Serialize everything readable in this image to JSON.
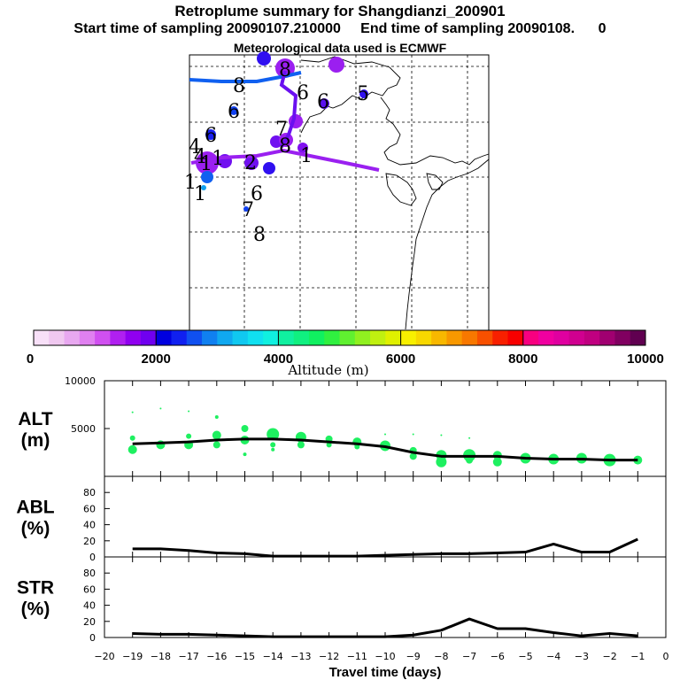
{
  "header": {
    "title": "Retroplume summary for Shangdianzi_200901",
    "line2": "Start time of sampling 20090107.210000     End time of sampling 20090108.      0",
    "line3": "Meteorological data used is ECMWF"
  },
  "colorbar": {
    "label": "Altitude (m)",
    "ticks": [
      "0",
      "2000",
      "4000",
      "6000",
      "8000",
      "10000"
    ],
    "colors": [
      "#f8e0f8",
      "#f0c8f0",
      "#e8a8f0",
      "#e080f0",
      "#d050f0",
      "#b020f0",
      "#9000f0",
      "#7000f0",
      "#0000e0",
      "#1020f0",
      "#1050f0",
      "#1080f0",
      "#10a8f0",
      "#10c8f0",
      "#10e0f0",
      "#10f0e0",
      "#10f0a0",
      "#10f080",
      "#10f060",
      "#30f040",
      "#60f030",
      "#90f020",
      "#c0f010",
      "#e0f000",
      "#f8f000",
      "#f8d800",
      "#f8b800",
      "#f89800",
      "#f87800",
      "#f85000",
      "#f82000",
      "#f80000",
      "#f80080",
      "#f000a0",
      "#e000a0",
      "#d00090",
      "#c00080",
      "#a00070",
      "#800060",
      "#600050"
    ]
  },
  "map": {
    "labels": [
      "8",
      "8",
      "6",
      "6",
      "5",
      "6",
      "6",
      "8",
      "7",
      "4",
      "1",
      "2",
      "4",
      "1",
      "1",
      "1",
      "1",
      "6",
      "7",
      "8"
    ]
  },
  "chart_data": [
    {
      "type": "line",
      "panel": "ALT",
      "ylabel": "ALT\n(m)",
      "ylabel_lines": [
        "ALT",
        "(m)"
      ],
      "ylim": [
        0,
        10000
      ],
      "yticks": [
        "10000",
        "5000"
      ],
      "x": [
        -19,
        -18,
        -17,
        -16,
        -15,
        -14,
        -13,
        -12,
        -11,
        -10,
        -9,
        -8,
        -7,
        -6,
        -5,
        -4,
        -3,
        -2,
        -1
      ],
      "series": [
        {
          "name": "mean altitude",
          "values": [
            3400,
            3500,
            3600,
            3800,
            3900,
            3900,
            3800,
            3600,
            3400,
            3100,
            2500,
            2100,
            2100,
            2100,
            1900,
            1800,
            1800,
            1700,
            1700
          ]
        }
      ],
      "scatter": [
        {
          "x": -19,
          "y": 6700,
          "s": 1
        },
        {
          "x": -19,
          "y": 4000,
          "s": 3
        },
        {
          "x": -19,
          "y": 2800,
          "s": 5
        },
        {
          "x": -18,
          "y": 7100,
          "s": 1
        },
        {
          "x": -18,
          "y": 3300,
          "s": 5
        },
        {
          "x": -17,
          "y": 6800,
          "s": 1
        },
        {
          "x": -17,
          "y": 4200,
          "s": 3
        },
        {
          "x": -17,
          "y": 3300,
          "s": 5
        },
        {
          "x": -16,
          "y": 6200,
          "s": 2
        },
        {
          "x": -16,
          "y": 4300,
          "s": 5
        },
        {
          "x": -16,
          "y": 3300,
          "s": 4
        },
        {
          "x": -15,
          "y": 5000,
          "s": 4
        },
        {
          "x": -15,
          "y": 3800,
          "s": 5
        },
        {
          "x": -15,
          "y": 2300,
          "s": 2
        },
        {
          "x": -14,
          "y": 4400,
          "s": 7
        },
        {
          "x": -14,
          "y": 3300,
          "s": 3
        },
        {
          "x": -14,
          "y": 2800,
          "s": 2
        },
        {
          "x": -13,
          "y": 4100,
          "s": 6
        },
        {
          "x": -13,
          "y": 3300,
          "s": 4
        },
        {
          "x": -12,
          "y": 3900,
          "s": 4
        },
        {
          "x": -12,
          "y": 3300,
          "s": 3
        },
        {
          "x": -11,
          "y": 3600,
          "s": 5
        },
        {
          "x": -11,
          "y": 3100,
          "s": 3
        },
        {
          "x": -10,
          "y": 4400,
          "s": 1
        },
        {
          "x": -10,
          "y": 3200,
          "s": 6
        },
        {
          "x": -9,
          "y": 4400,
          "s": 1
        },
        {
          "x": -9,
          "y": 2700,
          "s": 4
        },
        {
          "x": -9,
          "y": 2100,
          "s": 4
        },
        {
          "x": -8,
          "y": 4300,
          "s": 1
        },
        {
          "x": -8,
          "y": 2200,
          "s": 6
        },
        {
          "x": -8,
          "y": 1500,
          "s": 6
        },
        {
          "x": -7,
          "y": 4000,
          "s": 1
        },
        {
          "x": -7,
          "y": 2200,
          "s": 7
        },
        {
          "x": -7,
          "y": 1700,
          "s": 4
        },
        {
          "x": -6,
          "y": 2200,
          "s": 5
        },
        {
          "x": -6,
          "y": 1500,
          "s": 5
        },
        {
          "x": -5,
          "y": 1900,
          "s": 6
        },
        {
          "x": -4,
          "y": 1800,
          "s": 6
        },
        {
          "x": -3,
          "y": 1900,
          "s": 6
        },
        {
          "x": -2,
          "y": 1700,
          "s": 7
        },
        {
          "x": -1,
          "y": 1700,
          "s": 5
        }
      ]
    },
    {
      "type": "line",
      "panel": "ABL",
      "ylabel": "ABL\n(%)",
      "ylabel_lines": [
        "ABL",
        "(%)"
      ],
      "ylim": [
        0,
        100
      ],
      "yticks": [
        "80",
        "60",
        "40",
        "20",
        "0"
      ],
      "x": [
        -19,
        -18,
        -17,
        -16,
        -15,
        -14,
        -13,
        -12,
        -11,
        -10,
        -9,
        -8,
        -7,
        -6,
        -5,
        -4,
        -3,
        -2,
        -1
      ],
      "series": [
        {
          "name": "ABL fraction",
          "values": [
            10,
            10,
            8,
            5,
            4,
            1,
            1,
            1,
            1,
            2,
            3,
            4,
            4,
            5,
            6,
            16,
            6,
            6,
            22
          ]
        }
      ]
    },
    {
      "type": "line",
      "panel": "STR",
      "ylabel": "STR\n(%)",
      "ylabel_lines": [
        "STR",
        "(%)"
      ],
      "ylim": [
        0,
        100
      ],
      "yticks": [
        "80",
        "60",
        "40",
        "20",
        "0"
      ],
      "x": [
        -19,
        -18,
        -17,
        -16,
        -15,
        -14,
        -13,
        -12,
        -11,
        -10,
        -9,
        -8,
        -7,
        -6,
        -5,
        -4,
        -3,
        -2,
        -1
      ],
      "series": [
        {
          "name": "STR fraction",
          "values": [
            5,
            4,
            4,
            3,
            2,
            1,
            1,
            1,
            1,
            1,
            3,
            9,
            23,
            11,
            11,
            6,
            2,
            5,
            2
          ]
        }
      ],
      "xlabel": "Travel time (days)",
      "xticks": [
        "−20",
        "−19",
        "−18",
        "−17",
        "−16",
        "−15",
        "−14",
        "−13",
        "−12",
        "−11",
        "−10",
        "−9",
        "−8",
        "−7",
        "−6",
        "−5",
        "−4",
        "−3",
        "−2",
        "−1",
        "0"
      ]
    }
  ]
}
